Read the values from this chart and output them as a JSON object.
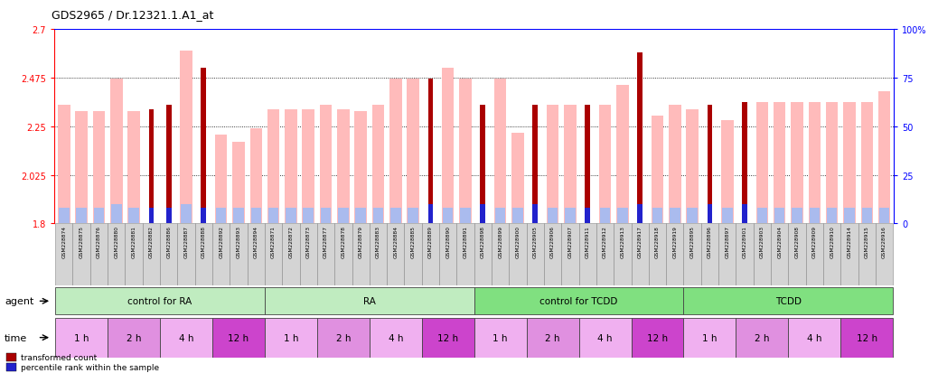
{
  "title": "GDS2965 / Dr.12321.1.A1_at",
  "ylim_left": [
    1.8,
    2.7
  ],
  "ylim_right": [
    0,
    100
  ],
  "yticks_left": [
    1.8,
    2.025,
    2.25,
    2.475,
    2.7
  ],
  "ytick_labels_left": [
    "1.8",
    "2.025",
    "2.25",
    "2.475",
    "2.7"
  ],
  "yticks_right": [
    0,
    25,
    50,
    75,
    100
  ],
  "ytick_labels_right": [
    "0",
    "25",
    "50",
    "75",
    "100%"
  ],
  "sample_ids": [
    "GSM228874",
    "GSM228875",
    "GSM228876",
    "GSM228880",
    "GSM228881",
    "GSM228882",
    "GSM228886",
    "GSM228887",
    "GSM228888",
    "GSM228892",
    "GSM228893",
    "GSM228894",
    "GSM228871",
    "GSM228872",
    "GSM228873",
    "GSM228877",
    "GSM228878",
    "GSM228879",
    "GSM228883",
    "GSM228884",
    "GSM228885",
    "GSM228889",
    "GSM228890",
    "GSM228891",
    "GSM228898",
    "GSM228899",
    "GSM228900",
    "GSM228905",
    "GSM228906",
    "GSM228907",
    "GSM228911",
    "GSM228912",
    "GSM228913",
    "GSM228917",
    "GSM228918",
    "GSM228919",
    "GSM228895",
    "GSM228896",
    "GSM228897",
    "GSM228901",
    "GSM228903",
    "GSM228904",
    "GSM228908",
    "GSM228909",
    "GSM228910",
    "GSM228914",
    "GSM228915",
    "GSM228916"
  ],
  "absent_value": [
    2.35,
    2.32,
    2.32,
    2.47,
    2.32,
    0,
    0,
    2.6,
    0,
    2.21,
    2.18,
    2.24,
    2.33,
    2.33,
    2.33,
    2.35,
    2.33,
    2.32,
    2.35,
    2.47,
    2.47,
    0,
    2.52,
    2.47,
    0,
    2.47,
    2.22,
    0,
    2.35,
    2.35,
    0,
    2.35,
    2.44,
    0,
    2.3,
    2.35,
    2.33,
    0,
    2.28,
    0,
    2.36,
    2.36,
    2.36,
    2.36,
    2.36,
    2.36,
    2.36,
    2.41
  ],
  "transformed_count": [
    0,
    0,
    0,
    0,
    0,
    2.33,
    2.35,
    0,
    2.52,
    0,
    0,
    0,
    0,
    0,
    0,
    0,
    0,
    0,
    0,
    0,
    0,
    2.47,
    0,
    0,
    2.35,
    0,
    0,
    2.35,
    0,
    0,
    2.35,
    0,
    0,
    2.59,
    0,
    0,
    0,
    2.35,
    0,
    2.36,
    0,
    0,
    0,
    0,
    0,
    0,
    0,
    0
  ],
  "percentile_rank_present": [
    0,
    0,
    0,
    0,
    0,
    8,
    8,
    0,
    8,
    0,
    0,
    0,
    0,
    0,
    0,
    0,
    0,
    0,
    0,
    0,
    0,
    10,
    0,
    0,
    10,
    0,
    0,
    10,
    0,
    0,
    8,
    0,
    0,
    10,
    0,
    0,
    0,
    10,
    0,
    10,
    0,
    0,
    0,
    0,
    0,
    0,
    0,
    0
  ],
  "absent_rank": [
    8,
    8,
    8,
    10,
    8,
    0,
    0,
    10,
    0,
    8,
    8,
    8,
    8,
    8,
    8,
    8,
    8,
    8,
    8,
    8,
    8,
    0,
    8,
    8,
    0,
    8,
    8,
    0,
    8,
    8,
    0,
    8,
    8,
    0,
    8,
    8,
    8,
    0,
    8,
    0,
    8,
    8,
    8,
    8,
    8,
    8,
    8,
    8
  ],
  "agents": [
    {
      "label": "control for RA",
      "start": 0,
      "end": 12,
      "color": "#c0ecc0"
    },
    {
      "label": "RA",
      "start": 12,
      "end": 24,
      "color": "#c0ecc0"
    },
    {
      "label": "control for TCDD",
      "start": 24,
      "end": 36,
      "color": "#80e080"
    },
    {
      "label": "TCDD",
      "start": 36,
      "end": 48,
      "color": "#80e080"
    }
  ],
  "times": [
    {
      "label": "1 h",
      "start": 0,
      "end": 3,
      "color": "#f0b0f0"
    },
    {
      "label": "2 h",
      "start": 3,
      "end": 6,
      "color": "#e090e0"
    },
    {
      "label": "4 h",
      "start": 6,
      "end": 9,
      "color": "#f0b0f0"
    },
    {
      "label": "12 h",
      "start": 9,
      "end": 12,
      "color": "#cc44cc"
    },
    {
      "label": "1 h",
      "start": 12,
      "end": 15,
      "color": "#f0b0f0"
    },
    {
      "label": "2 h",
      "start": 15,
      "end": 18,
      "color": "#e090e0"
    },
    {
      "label": "4 h",
      "start": 18,
      "end": 21,
      "color": "#f0b0f0"
    },
    {
      "label": "12 h",
      "start": 21,
      "end": 24,
      "color": "#cc44cc"
    },
    {
      "label": "1 h",
      "start": 24,
      "end": 27,
      "color": "#f0b0f0"
    },
    {
      "label": "2 h",
      "start": 27,
      "end": 30,
      "color": "#e090e0"
    },
    {
      "label": "4 h",
      "start": 30,
      "end": 33,
      "color": "#f0b0f0"
    },
    {
      "label": "12 h",
      "start": 33,
      "end": 36,
      "color": "#cc44cc"
    },
    {
      "label": "1 h",
      "start": 36,
      "end": 39,
      "color": "#f0b0f0"
    },
    {
      "label": "2 h",
      "start": 39,
      "end": 42,
      "color": "#e090e0"
    },
    {
      "label": "4 h",
      "start": 42,
      "end": 45,
      "color": "#f0b0f0"
    },
    {
      "label": "12 h",
      "start": 45,
      "end": 48,
      "color": "#cc44cc"
    }
  ],
  "color_dark_red": "#aa0000",
  "color_blue": "#2222cc",
  "color_light_pink": "#ffbbbb",
  "color_light_blue": "#aabbee",
  "base_value": 1.8
}
